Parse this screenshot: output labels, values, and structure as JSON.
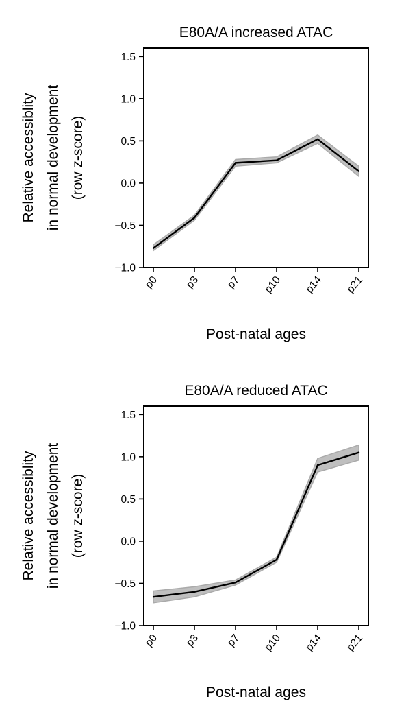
{
  "chart_data": [
    {
      "type": "line",
      "title": "E80A/A increased ATAC",
      "xlabel": "Post-natal ages",
      "ylabel": [
        "Relative accessiblity",
        "in normal development",
        "(row z-score)"
      ],
      "categories": [
        "p0",
        "p3",
        "p7",
        "p10",
        "p14",
        "p21"
      ],
      "values": [
        -0.77,
        -0.41,
        0.24,
        0.27,
        0.52,
        0.14
      ],
      "band_lower": [
        -0.8,
        -0.44,
        0.2,
        0.24,
        0.47,
        0.08
      ],
      "band_upper": [
        -0.73,
        -0.38,
        0.28,
        0.31,
        0.57,
        0.2
      ],
      "ylim": [
        -1.0,
        1.6
      ],
      "yticks": [
        -1.0,
        -0.5,
        0.0,
        0.5,
        1.0,
        1.5
      ],
      "ytick_labels": [
        "−1.0",
        "−0.5",
        "0.0",
        "0.5",
        "1.0",
        "1.5"
      ],
      "line_color": "#000000",
      "band_color": "#aaaaaa",
      "grid": false
    },
    {
      "type": "line",
      "title": "E80A/A reduced ATAC",
      "xlabel": "Post-natal ages",
      "ylabel": [
        "Relative accessiblity",
        "in normal development",
        "(row z-score)"
      ],
      "categories": [
        "p0",
        "p3",
        "p7",
        "p10",
        "p14",
        "p21"
      ],
      "values": [
        -0.66,
        -0.6,
        -0.49,
        -0.22,
        0.9,
        1.05
      ],
      "band_lower": [
        -0.73,
        -0.66,
        -0.52,
        -0.25,
        0.82,
        0.96
      ],
      "band_upper": [
        -0.59,
        -0.54,
        -0.46,
        -0.19,
        0.98,
        1.14
      ],
      "ylim": [
        -1.0,
        1.6
      ],
      "yticks": [
        -1.0,
        -0.5,
        0.0,
        0.5,
        1.0,
        1.5
      ],
      "ytick_labels": [
        "−1.0",
        "−0.5",
        "0.0",
        "0.5",
        "1.0",
        "1.5"
      ],
      "line_color": "#000000",
      "band_color": "#aaaaaa",
      "grid": false
    }
  ]
}
